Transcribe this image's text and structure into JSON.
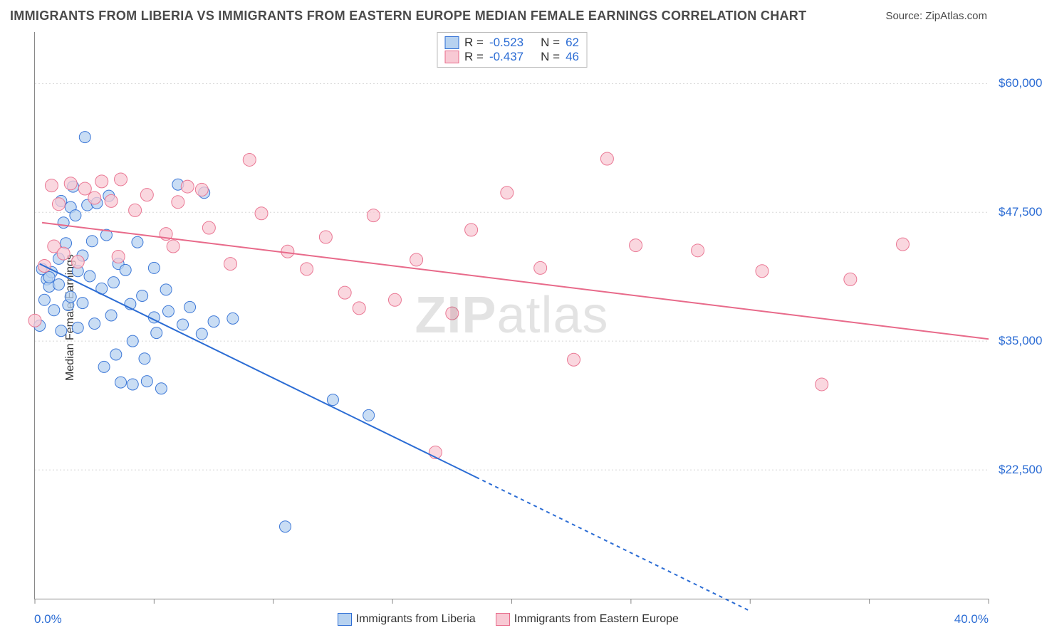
{
  "title": "IMMIGRANTS FROM LIBERIA VS IMMIGRANTS FROM EASTERN EUROPE MEDIAN FEMALE EARNINGS CORRELATION CHART",
  "source": "Source: ZipAtlas.com",
  "watermark": "ZIPatlas",
  "chart": {
    "type": "scatter",
    "y_axis": {
      "label": "Median Female Earnings",
      "min": 10000,
      "max": 65000,
      "grid_values": [
        22500,
        35000,
        47500,
        60000
      ],
      "grid_labels": [
        "$22,500",
        "$35,000",
        "$47,500",
        "$60,000"
      ],
      "grid_color": "#d8d8d8",
      "grid_dash": "2,3",
      "label_color": "#2b6cd4"
    },
    "x_axis": {
      "min": 0,
      "max": 40,
      "min_label": "0.0%",
      "max_label": "40.0%",
      "ticks": [
        0,
        5,
        10,
        15,
        20,
        25,
        30,
        35,
        40
      ],
      "tick_color": "#888",
      "label_color": "#2b6cd4"
    },
    "legend_top": [
      {
        "swatch_fill": "#b7d2f0",
        "swatch_stroke": "#2b6cd4",
        "r_label": "R =",
        "r_value": "-0.523",
        "n_label": "N =",
        "n_value": "62"
      },
      {
        "swatch_fill": "#f8c9d4",
        "swatch_stroke": "#e86a8a",
        "r_label": "R =",
        "r_value": "-0.437",
        "n_label": "N =",
        "n_value": "46"
      }
    ],
    "legend_bottom": [
      {
        "swatch_fill": "#b7d2f0",
        "swatch_stroke": "#2b6cd4",
        "label": "Immigrants from Liberia"
      },
      {
        "swatch_fill": "#f8c9d4",
        "swatch_stroke": "#e86a8a",
        "label": "Immigrants from Eastern Europe"
      }
    ],
    "series": [
      {
        "name": "liberia",
        "marker_fill": "#b7d2f0",
        "marker_fill_opacity": 0.75,
        "marker_stroke": "#2b6cd4",
        "marker_stroke_opacity": 0.9,
        "marker_radius": 8,
        "trend": {
          "color": "#2b6cd4",
          "width": 2,
          "x1": 0.2,
          "y1": 42500,
          "x2": 18.5,
          "y2": 21800,
          "extend_x2": 30,
          "extend_y2": 8800,
          "dash_extend": "5,5"
        },
        "points": [
          [
            0.2,
            36500
          ],
          [
            0.3,
            42000
          ],
          [
            0.4,
            39000
          ],
          [
            0.5,
            41000
          ],
          [
            0.6,
            40300
          ],
          [
            0.7,
            41700
          ],
          [
            0.8,
            38000
          ],
          [
            0.6,
            41200
          ],
          [
            1.0,
            43000
          ],
          [
            1.0,
            40500
          ],
          [
            1.1,
            48600
          ],
          [
            1.1,
            36000
          ],
          [
            1.2,
            46500
          ],
          [
            1.3,
            44500
          ],
          [
            1.4,
            38500
          ],
          [
            1.5,
            48000
          ],
          [
            1.5,
            39300
          ],
          [
            1.6,
            50000
          ],
          [
            1.7,
            47200
          ],
          [
            1.8,
            41800
          ],
          [
            1.8,
            36300
          ],
          [
            2.0,
            43300
          ],
          [
            2.0,
            38700
          ],
          [
            2.1,
            54800
          ],
          [
            2.2,
            48200
          ],
          [
            2.3,
            41300
          ],
          [
            2.4,
            44700
          ],
          [
            2.5,
            36700
          ],
          [
            2.6,
            48400
          ],
          [
            2.8,
            40100
          ],
          [
            2.9,
            32500
          ],
          [
            3.0,
            45300
          ],
          [
            3.1,
            49100
          ],
          [
            3.2,
            37500
          ],
          [
            3.3,
            40700
          ],
          [
            3.4,
            33700
          ],
          [
            3.5,
            42500
          ],
          [
            3.6,
            31000
          ],
          [
            3.8,
            41900
          ],
          [
            4.0,
            38600
          ],
          [
            4.1,
            35000
          ],
          [
            4.1,
            30800
          ],
          [
            4.3,
            44600
          ],
          [
            4.5,
            39400
          ],
          [
            4.6,
            33300
          ],
          [
            4.7,
            31100
          ],
          [
            5.0,
            37300
          ],
          [
            5.0,
            42100
          ],
          [
            5.1,
            35800
          ],
          [
            5.3,
            30400
          ],
          [
            5.5,
            40000
          ],
          [
            5.6,
            37900
          ],
          [
            6.0,
            50200
          ],
          [
            6.2,
            36600
          ],
          [
            6.5,
            38300
          ],
          [
            7.0,
            35700
          ],
          [
            7.1,
            49400
          ],
          [
            7.5,
            36900
          ],
          [
            8.3,
            37200
          ],
          [
            10.5,
            17000
          ],
          [
            12.5,
            29300
          ],
          [
            14.0,
            27800
          ]
        ]
      },
      {
        "name": "eastern-europe",
        "marker_fill": "#f8c9d4",
        "marker_fill_opacity": 0.75,
        "marker_stroke": "#e86a8a",
        "marker_stroke_opacity": 0.9,
        "marker_radius": 9,
        "trend": {
          "color": "#e86a8a",
          "width": 2,
          "x1": 0.3,
          "y1": 46500,
          "x2": 40,
          "y2": 35200
        },
        "points": [
          [
            0.0,
            37000
          ],
          [
            0.4,
            42300
          ],
          [
            0.7,
            50100
          ],
          [
            0.8,
            44200
          ],
          [
            1.0,
            48300
          ],
          [
            1.2,
            43500
          ],
          [
            1.5,
            50300
          ],
          [
            1.8,
            42700
          ],
          [
            2.1,
            49800
          ],
          [
            2.5,
            48900
          ],
          [
            2.8,
            50500
          ],
          [
            3.2,
            48600
          ],
          [
            3.5,
            43200
          ],
          [
            3.6,
            50700
          ],
          [
            4.2,
            47700
          ],
          [
            4.7,
            49200
          ],
          [
            5.5,
            45400
          ],
          [
            5.8,
            44200
          ],
          [
            6.0,
            48500
          ],
          [
            6.4,
            50000
          ],
          [
            7.0,
            49700
          ],
          [
            7.3,
            46000
          ],
          [
            8.2,
            42500
          ],
          [
            9.0,
            52600
          ],
          [
            9.5,
            47400
          ],
          [
            10.6,
            43700
          ],
          [
            11.4,
            42000
          ],
          [
            12.2,
            45100
          ],
          [
            13.0,
            39700
          ],
          [
            13.6,
            38200
          ],
          [
            14.2,
            47200
          ],
          [
            15.1,
            39000
          ],
          [
            16.0,
            42900
          ],
          [
            16.8,
            24200
          ],
          [
            17.5,
            37700
          ],
          [
            18.3,
            45800
          ],
          [
            19.8,
            49400
          ],
          [
            21.2,
            42100
          ],
          [
            22.6,
            33200
          ],
          [
            24.0,
            52700
          ],
          [
            25.2,
            44300
          ],
          [
            27.8,
            43800
          ],
          [
            30.5,
            41800
          ],
          [
            33.0,
            30800
          ],
          [
            34.2,
            41000
          ],
          [
            36.4,
            44400
          ]
        ]
      }
    ]
  }
}
